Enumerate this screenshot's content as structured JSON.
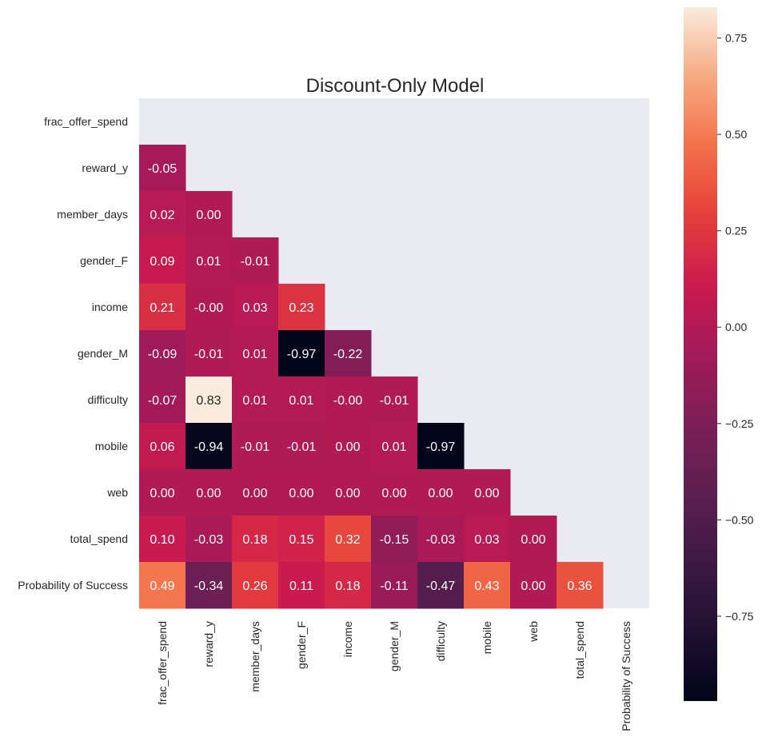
{
  "chart_data": {
    "type": "heatmap",
    "title": "Discount-Only Model",
    "variables": [
      "frac_offer_spend",
      "reward_y",
      "member_days",
      "gender_F",
      "income",
      "gender_M",
      "difficulty",
      "mobile",
      "web",
      "total_spend",
      "Probability of Success"
    ],
    "mask": "upper-triangle-including-diagonal",
    "matrix": [
      [
        null,
        null,
        null,
        null,
        null,
        null,
        null,
        null,
        null,
        null,
        null
      ],
      [
        -0.05,
        null,
        null,
        null,
        null,
        null,
        null,
        null,
        null,
        null,
        null
      ],
      [
        0.02,
        0.0,
        null,
        null,
        null,
        null,
        null,
        null,
        null,
        null,
        null
      ],
      [
        0.09,
        0.01,
        -0.01,
        null,
        null,
        null,
        null,
        null,
        null,
        null,
        null
      ],
      [
        0.21,
        -0.0,
        0.03,
        0.23,
        null,
        null,
        null,
        null,
        null,
        null,
        null
      ],
      [
        -0.09,
        -0.01,
        0.01,
        -0.97,
        -0.22,
        null,
        null,
        null,
        null,
        null,
        null
      ],
      [
        -0.07,
        0.83,
        0.01,
        0.01,
        -0.0,
        -0.01,
        null,
        null,
        null,
        null,
        null
      ],
      [
        0.06,
        -0.94,
        -0.01,
        -0.01,
        0.0,
        0.01,
        -0.97,
        null,
        null,
        null,
        null
      ],
      [
        0.0,
        0.0,
        0.0,
        0.0,
        0.0,
        0.0,
        0.0,
        0.0,
        null,
        null,
        null
      ],
      [
        0.1,
        -0.03,
        0.18,
        0.15,
        0.32,
        -0.15,
        -0.03,
        0.03,
        0.0,
        null,
        null
      ],
      [
        0.49,
        -0.34,
        0.26,
        0.11,
        0.18,
        -0.11,
        -0.47,
        0.43,
        0.0,
        0.36,
        null
      ]
    ],
    "cell_labels": [
      [
        "",
        "",
        "",
        "",
        "",
        "",
        "",
        "",
        "",
        "",
        ""
      ],
      [
        "-0.05",
        "",
        "",
        "",
        "",
        "",
        "",
        "",
        "",
        "",
        ""
      ],
      [
        "0.02",
        "0.00",
        "",
        "",
        "",
        "",
        "",
        "",
        "",
        "",
        ""
      ],
      [
        "0.09",
        "0.01",
        "-0.01",
        "",
        "",
        "",
        "",
        "",
        "",
        "",
        ""
      ],
      [
        "0.21",
        "-0.00",
        "0.03",
        "0.23",
        "",
        "",
        "",
        "",
        "",
        "",
        ""
      ],
      [
        "-0.09",
        "-0.01",
        "0.01",
        "-0.97",
        "-0.22",
        "",
        "",
        "",
        "",
        "",
        ""
      ],
      [
        "-0.07",
        "0.83",
        "0.01",
        "0.01",
        "-0.00",
        "-0.01",
        "",
        "",
        "",
        "",
        ""
      ],
      [
        "0.06",
        "-0.94",
        "-0.01",
        "-0.01",
        "0.00",
        "0.01",
        "-0.97",
        "",
        "",
        "",
        ""
      ],
      [
        "0.00",
        "0.00",
        "0.00",
        "0.00",
        "0.00",
        "0.00",
        "0.00",
        "0.00",
        "",
        "",
        ""
      ],
      [
        "0.10",
        "-0.03",
        "0.18",
        "0.15",
        "0.32",
        "-0.15",
        "-0.03",
        "0.03",
        "0.00",
        "",
        ""
      ],
      [
        "0.49",
        "-0.34",
        "0.26",
        "0.11",
        "0.18",
        "-0.11",
        "-0.47",
        "0.43",
        "0.00",
        "0.36",
        ""
      ]
    ],
    "colorbar": {
      "vmin": -0.97,
      "vmax": 0.83,
      "ticks": [
        0.75,
        0.5,
        0.25,
        0.0,
        -0.25,
        -0.5,
        -0.75
      ],
      "tick_labels": [
        "0.75",
        "0.50",
        "0.25",
        "0.00",
        "−0.25",
        "−0.50",
        "−0.75"
      ],
      "colormap": "rocket"
    },
    "colors": {
      "masked_background": "#eaeaf2",
      "text_light": "#ffffff",
      "text_dark": "#262626",
      "axis_text": "#262626"
    }
  }
}
